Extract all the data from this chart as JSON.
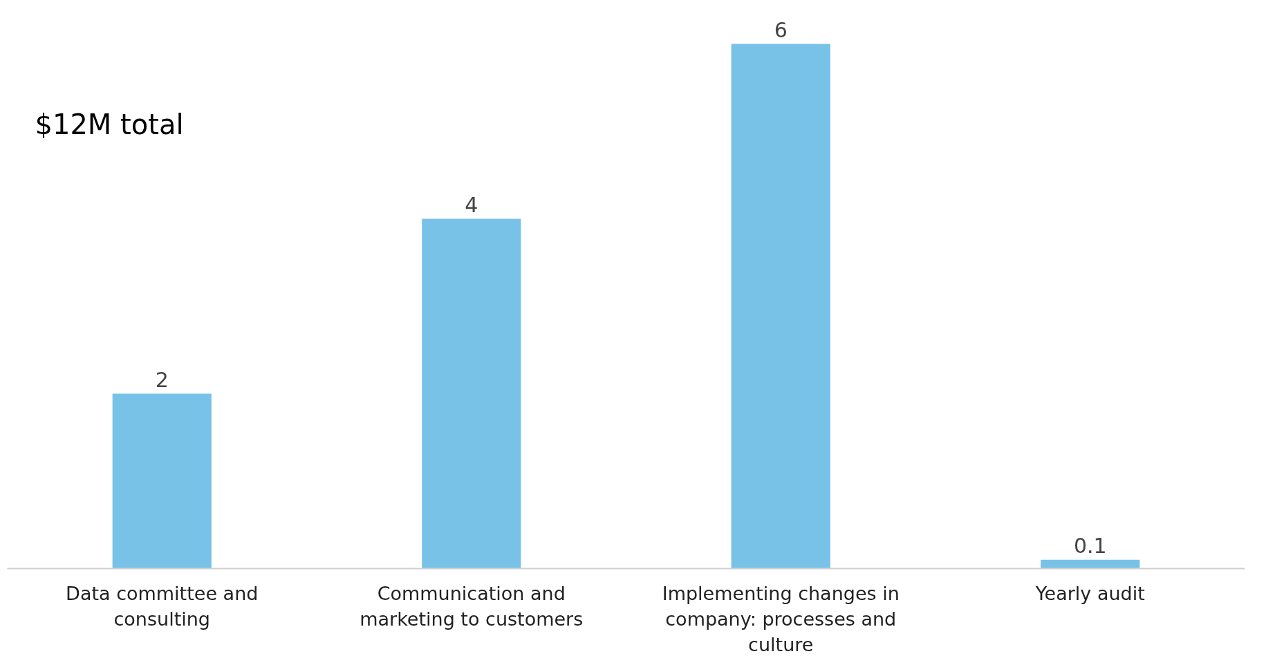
{
  "chart_data": {
    "type": "bar",
    "categories": [
      "Data committee and consulting",
      "Communication and marketing to customers",
      "Implementing changes in company: processes and culture",
      "Yearly audit"
    ],
    "values": [
      2,
      4,
      6,
      0.1
    ],
    "color": "#78c2e8",
    "data_labels": true,
    "grid": false,
    "annotations": [
      "$12M total"
    ]
  }
}
